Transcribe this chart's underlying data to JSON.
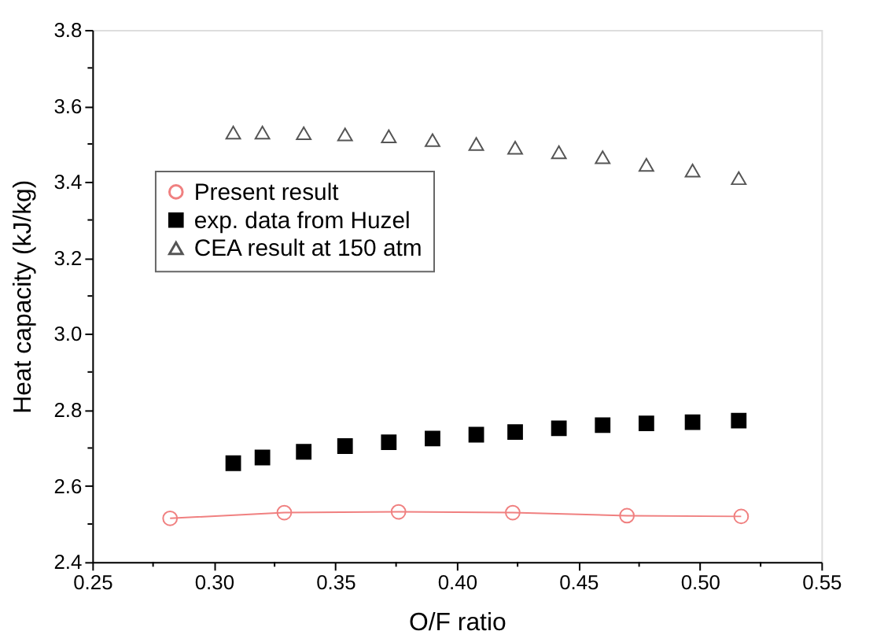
{
  "chart_data": {
    "type": "scatter",
    "xlabel": "O/F ratio",
    "ylabel": "Heat capacity (kJ/kg)",
    "series": [
      {
        "name": "Present result",
        "type": "line",
        "marker": "circle",
        "color": "#f08080",
        "x": [
          0.282,
          0.329,
          0.376,
          0.423,
          0.47,
          0.517
        ],
        "values": [
          2.515,
          2.53,
          2.532,
          2.53,
          2.522,
          2.52
        ]
      },
      {
        "name": "exp. data from Huzel",
        "type": "scatter",
        "marker": "square",
        "color": "#000000",
        "x": [
          0.308,
          0.32,
          0.337,
          0.354,
          0.372,
          0.39,
          0.408,
          0.424,
          0.442,
          0.46,
          0.478,
          0.497,
          0.516
        ],
        "values": [
          2.66,
          2.675,
          2.69,
          2.705,
          2.715,
          2.725,
          2.735,
          2.742,
          2.752,
          2.76,
          2.765,
          2.768,
          2.772
        ]
      },
      {
        "name": "CEA result at 150 atm",
        "type": "scatter",
        "marker": "triangle",
        "color": "#555555",
        "x": [
          0.308,
          0.32,
          0.337,
          0.354,
          0.372,
          0.39,
          0.408,
          0.424,
          0.442,
          0.46,
          0.478,
          0.497,
          0.516
        ],
        "values": [
          3.53,
          3.53,
          3.528,
          3.525,
          3.52,
          3.51,
          3.5,
          3.49,
          3.478,
          3.465,
          3.445,
          3.43,
          3.41
        ]
      }
    ],
    "xlim": [
      0.25,
      0.55
    ],
    "xticks": [
      0.25,
      {
        "value": 0.275,
        "label": null
      },
      "0.30",
      {
        "value": 0.325,
        "label": null
      },
      0.35,
      {
        "value": 0.375,
        "label": null
      },
      "0.40",
      {
        "value": 0.425,
        "label": null
      },
      0.45,
      {
        "value": 0.475,
        "label": null
      },
      "0.50",
      {
        "value": 0.525,
        "label": null
      },
      0.55
    ],
    "ylim": [
      2.4,
      3.8
    ],
    "yticks": [
      2.4,
      {
        "value": 2.5,
        "label": null
      },
      2.6,
      {
        "value": 2.7,
        "label": null
      },
      2.8,
      {
        "value": 2.9,
        "label": null
      },
      "3.0",
      {
        "value": 3.1,
        "label": null
      },
      3.2,
      {
        "value": 3.3,
        "label": null
      },
      3.4,
      {
        "value": 3.5,
        "label": null
      },
      3.6,
      {
        "value": 3.7,
        "label": null
      },
      3.8
    ],
    "grid": false,
    "legend": "left"
  }
}
